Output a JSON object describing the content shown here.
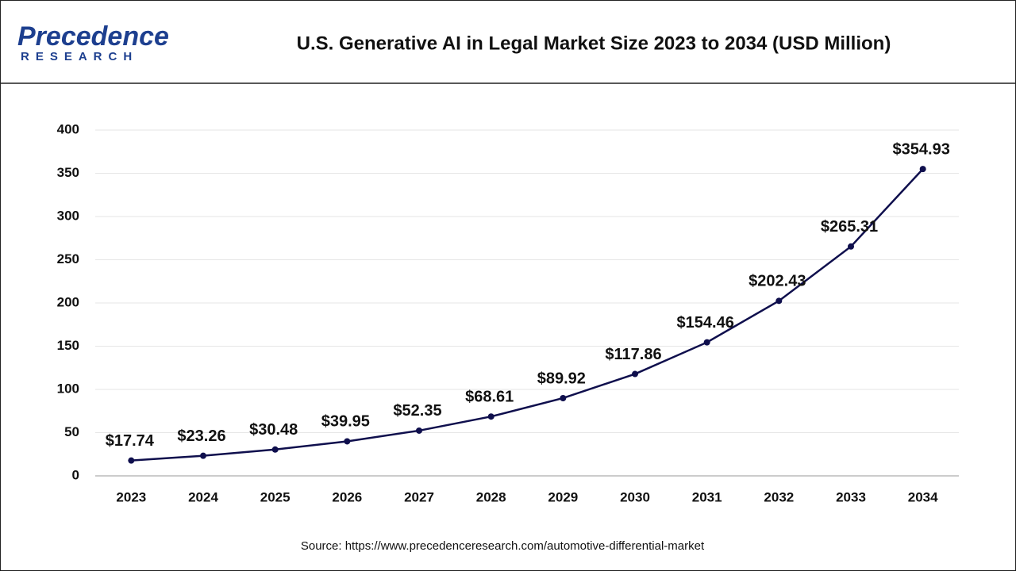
{
  "logo": {
    "name": "Precedence",
    "sub": "RESEARCH"
  },
  "source": "Source: https://www.precedenceresearch.com/automotive-differential-market",
  "chart_data": {
    "type": "line",
    "title": "U.S. Generative AI in Legal Market Size 2023 to 2034 (USD Million)",
    "categories": [
      "2023",
      "2024",
      "2025",
      "2026",
      "2027",
      "2028",
      "2029",
      "2030",
      "2031",
      "2032",
      "2033",
      "2034"
    ],
    "values": [
      17.74,
      23.26,
      30.48,
      39.95,
      52.35,
      68.61,
      89.92,
      117.86,
      154.46,
      202.43,
      265.31,
      354.93
    ],
    "value_labels": [
      "$17.74",
      "$23.26",
      "$30.48",
      "$39.95",
      "$52.35",
      "$68.61",
      "$89.92",
      "$117.86",
      "$154.46",
      "$202.43",
      "$265.31",
      "$354.93"
    ],
    "color": "#0f0f4d",
    "ylim": [
      0,
      400
    ],
    "yticks": [
      0,
      50,
      100,
      150,
      200,
      250,
      300,
      350,
      400
    ],
    "grid": true
  }
}
